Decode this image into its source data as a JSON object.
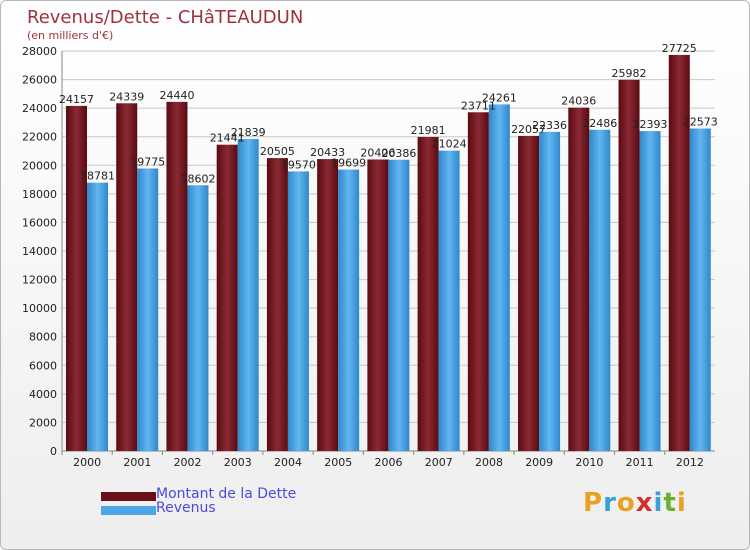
{
  "chart_data": {
    "type": "bar",
    "title": "Revenus/Dette - CHâTEAUDUN",
    "subtitle": "(en milliers d'€)",
    "categories": [
      "2000",
      "2001",
      "2002",
      "2003",
      "2004",
      "2005",
      "2006",
      "2007",
      "2008",
      "2009",
      "2010",
      "2011",
      "2012"
    ],
    "series": [
      {
        "name": "Montant de la Dette",
        "color": "#7a1e28",
        "values": [
          24157,
          24339,
          24440,
          21441,
          20505,
          20433,
          20406,
          21981,
          23711,
          22057,
          24036,
          25982,
          27725
        ]
      },
      {
        "name": "Revenus",
        "color": "#4da6e6",
        "values": [
          18781,
          19775,
          18602,
          21839,
          19570,
          19699,
          20386,
          21024,
          24261,
          22336,
          22486,
          22393,
          22573
        ]
      }
    ],
    "ylim": [
      0,
      28000
    ],
    "yticks": [
      0,
      2000,
      4000,
      6000,
      8000,
      10000,
      12000,
      14000,
      16000,
      18000,
      20000,
      22000,
      24000,
      26000,
      28000
    ],
    "grid": true,
    "legend": "bottom-left"
  },
  "logo": {
    "letters": [
      "P",
      "r",
      "o",
      "x",
      "i",
      "t",
      "i"
    ],
    "colors": [
      "#e8a020",
      "#3aa0d8",
      "#e8a020",
      "#d03030",
      "#3aa0d8",
      "#6ab030",
      "#e8a020"
    ]
  }
}
